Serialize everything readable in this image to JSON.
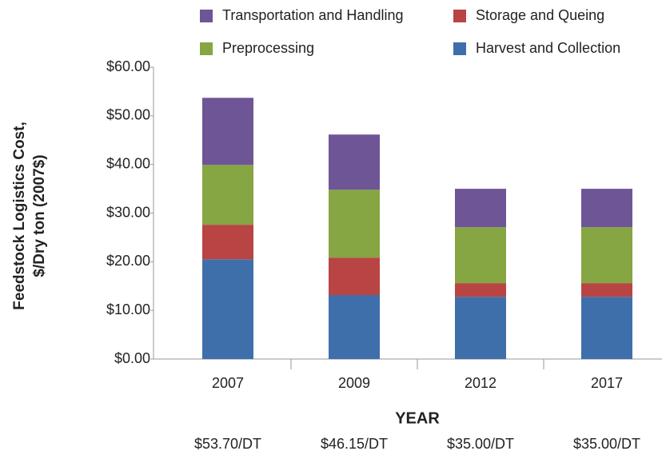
{
  "chart_data": {
    "type": "stacked_bar",
    "y_label": [
      "Feedstock Logistics Cost,",
      "$/Dry ton (2007$)"
    ],
    "x_label": "YEAR",
    "categories": [
      "2007",
      "2009",
      "2012",
      "2017"
    ],
    "series": [
      {
        "name": "Harvest and Collection",
        "color": "#3f6fab",
        "values": [
          20.5,
          13.15,
          12.8,
          12.8
        ]
      },
      {
        "name": "Storage and Queing",
        "color": "#b84543",
        "values": [
          7.1,
          7.7,
          2.8,
          2.8
        ]
      },
      {
        "name": "Preprocessing",
        "color": "#86a543",
        "values": [
          12.3,
          13.95,
          11.5,
          11.5
        ]
      },
      {
        "name": "Transportation and Handling",
        "color": "#6e5596",
        "values": [
          13.8,
          11.35,
          7.9,
          7.9
        ]
      }
    ],
    "total_labels": [
      "$53.70/DT",
      "$46.15/DT",
      "$35.00/DT",
      "$35.00/DT"
    ],
    "ylim": [
      0,
      60
    ],
    "yticks": [
      {
        "value": 0,
        "label": "$0.00"
      },
      {
        "value": 10,
        "label": "$10.00"
      },
      {
        "value": 20,
        "label": "$20.00"
      },
      {
        "value": 30,
        "label": "$30.00"
      },
      {
        "value": 40,
        "label": "$40.00"
      },
      {
        "value": 50,
        "label": "$50.00"
      },
      {
        "value": 60,
        "label": "$60.00"
      }
    ]
  }
}
